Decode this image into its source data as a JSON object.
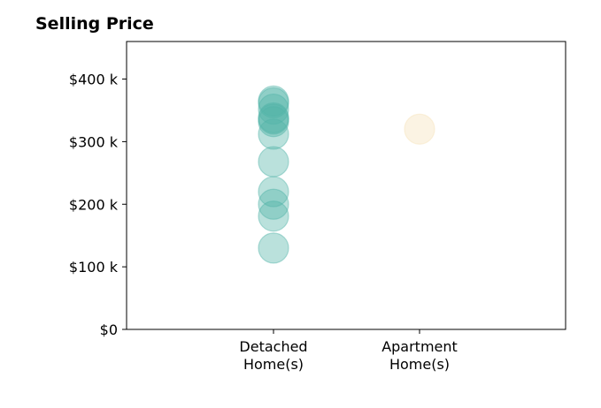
{
  "chart_data": {
    "type": "scatter",
    "title": "Selling Price",
    "xlabel": "",
    "ylabel": "",
    "categories": [
      [
        "Detached",
        "Home(s)"
      ],
      [
        "Apartment",
        "Home(s)"
      ]
    ],
    "ylim": [
      0,
      460000
    ],
    "yticks": [
      0,
      100000,
      200000,
      300000,
      400000
    ],
    "ytick_labels": [
      "$0",
      "$100 k",
      "$200 k",
      "$300 k",
      "$400 k"
    ],
    "grid": false,
    "series": [
      {
        "category_index": 0,
        "color": "#52b3a8",
        "values": [
          365000,
          362000,
          352000,
          338000,
          336000,
          332000,
          312000,
          268000,
          220000,
          200000,
          181000,
          130000
        ]
      },
      {
        "category_index": 1,
        "color": "#f6e2b8",
        "values": [
          320000
        ]
      }
    ]
  }
}
